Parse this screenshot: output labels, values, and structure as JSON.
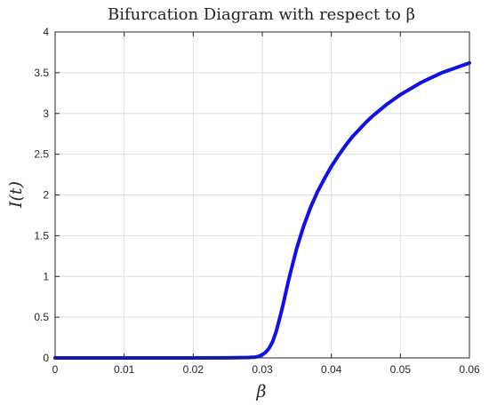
{
  "chart_data": {
    "type": "line",
    "title": "Bifurcation Diagram with respect to β",
    "xlabel": "β",
    "ylabel": "I(t)",
    "xlim": [
      0,
      0.06
    ],
    "ylim": [
      0,
      4
    ],
    "xticks": [
      0,
      0.01,
      0.02,
      0.03,
      0.04,
      0.05,
      0.06
    ],
    "xtick_labels": [
      "0",
      "0.01",
      "0.02",
      "0.03",
      "0.04",
      "0.05",
      "0.06"
    ],
    "yticks": [
      0,
      0.5,
      1,
      1.5,
      2,
      2.5,
      3,
      3.5,
      4
    ],
    "ytick_labels": [
      "0",
      "0.5",
      "1",
      "1.5",
      "2",
      "2.5",
      "3",
      "3.5",
      "4"
    ],
    "grid": true,
    "series": [
      {
        "color": "#1010e8",
        "x": [
          0,
          0.005,
          0.01,
          0.015,
          0.02,
          0.025,
          0.028,
          0.029,
          0.0295,
          0.03,
          0.0305,
          0.031,
          0.0315,
          0.032,
          0.0325,
          0.033,
          0.0335,
          0.034,
          0.035,
          0.036,
          0.037,
          0.038,
          0.039,
          0.04,
          0.041,
          0.042,
          0.043,
          0.044,
          0.045,
          0.046,
          0.047,
          0.048,
          0.049,
          0.05,
          0.051,
          0.052,
          0.053,
          0.054,
          0.055,
          0.056,
          0.057,
          0.058,
          0.059,
          0.06
        ],
        "y": [
          0,
          0,
          0,
          0,
          0,
          0.001,
          0.005,
          0.01,
          0.02,
          0.04,
          0.07,
          0.12,
          0.2,
          0.32,
          0.48,
          0.65,
          0.84,
          1.02,
          1.35,
          1.62,
          1.85,
          2.04,
          2.2,
          2.35,
          2.48,
          2.6,
          2.71,
          2.8,
          2.89,
          2.97,
          3.04,
          3.11,
          3.17,
          3.23,
          3.28,
          3.33,
          3.38,
          3.42,
          3.46,
          3.5,
          3.53,
          3.56,
          3.59,
          3.62
        ]
      }
    ]
  }
}
